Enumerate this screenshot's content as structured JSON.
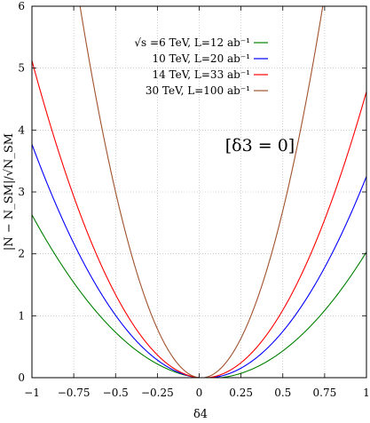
{
  "chart_data": {
    "type": "line",
    "xlabel": "δ4",
    "ylabel": "|N − N_SM|/√N_SM",
    "xlim": [
      -1,
      1
    ],
    "ylim": [
      0,
      6
    ],
    "grid": true,
    "legend_position": "top-right",
    "annotation": "[δ3 = 0]",
    "x_ticks": [
      "−1",
      "−0.75",
      "−0.5",
      "−0.25",
      "0",
      "0.25",
      "0.5",
      "0.75",
      "1"
    ],
    "y_ticks": [
      "0",
      "1",
      "2",
      "3",
      "4",
      "5",
      "6"
    ],
    "series": [
      {
        "name": "√s =6 TeV, L=12 ab⁻¹",
        "color": "#008000",
        "values_at_x": {
          "-1": 2.63,
          "-0.5": 0.88,
          "0": 0.0,
          "0.5": 0.32,
          "1": 2.03
        }
      },
      {
        "name": "10 TeV, L=20 ab⁻¹",
        "color": "#0000ff",
        "values_at_x": {
          "-1": 3.77,
          "-0.5": 1.27,
          "0": 0.0,
          "0.5": 0.68,
          "1": 3.25
        }
      },
      {
        "name": "14 TeV, L=33 ab⁻¹",
        "color": "#ff0000",
        "values_at_x": {
          "-1": 5.12,
          "-0.5": 1.69,
          "0": 0.0,
          "0.5": 1.17,
          "1": 4.62
        }
      },
      {
        "name": "30 TeV, L=100 ab⁻¹",
        "color": "#a0522d",
        "values_at_x": {
          "-1": 11.7,
          "-0.5": 3.4,
          "0": 0.0,
          "0.5": 2.4,
          "1": 11.1
        }
      }
    ]
  }
}
